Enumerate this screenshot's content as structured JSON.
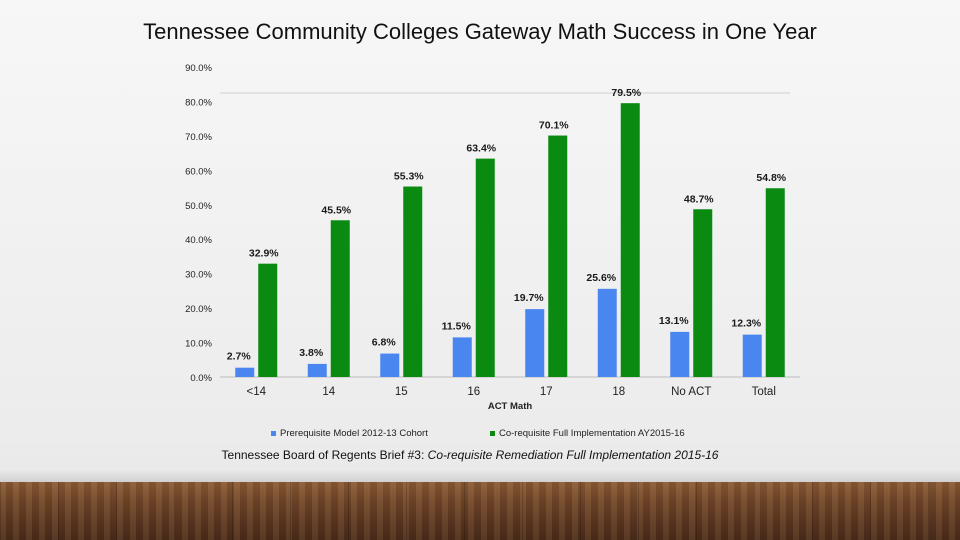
{
  "chart_data": {
    "type": "bar",
    "title": "Tennessee Community Colleges Gateway Math Success in One Year",
    "xlabel": "ACT Math",
    "ylabel": "",
    "ylim": [
      0,
      90
    ],
    "yticks": [
      "0.0%",
      "10.0%",
      "20.0%",
      "30.0%",
      "40.0%",
      "50.0%",
      "60.0%",
      "70.0%",
      "80.0%",
      "90.0%"
    ],
    "categories": [
      "<14",
      "14",
      "15",
      "16",
      "17",
      "18",
      "No ACT",
      "Total"
    ],
    "series": [
      {
        "name": "Prerequisite Model 2012-13 Cohort",
        "color": "#4a86f0",
        "values": [
          2.7,
          3.8,
          6.8,
          11.5,
          19.7,
          25.6,
          13.1,
          12.3
        ],
        "labels": [
          "2.7%",
          "3.8%",
          "6.8%",
          "11.5%",
          "19.7%",
          "25.6%",
          "13.1%",
          "12.3%"
        ]
      },
      {
        "name": "Co-requisite Full Implementation AY2015-16",
        "color": "#0b8a12",
        "values": [
          32.9,
          45.5,
          55.3,
          63.4,
          70.1,
          79.5,
          48.7,
          54.8
        ],
        "labels": [
          "32.9%",
          "45.5%",
          "55.3%",
          "63.4%",
          "70.1%",
          "79.5%",
          "48.7%",
          "54.8%"
        ]
      }
    ],
    "legend_position": "bottom",
    "grid": false
  },
  "caption": {
    "prefix": "Tennessee Board of Regents Brief #3: ",
    "italic": "Co-requisite Remediation Full Implementation 2015-16"
  }
}
